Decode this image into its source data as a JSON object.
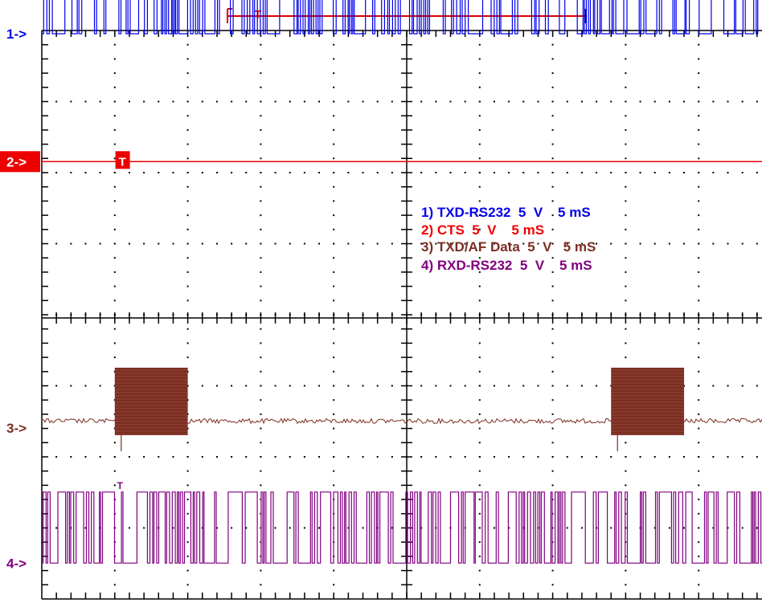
{
  "colors": {
    "background": "#ffffff",
    "grid": "#000000",
    "ch1": "#0000ee",
    "ch2": "#ee0000",
    "ch3": "#7b2e22",
    "ch4": "#800080",
    "trigger_bar": "#e00000"
  },
  "chart_data": {
    "type": "line",
    "title": "",
    "grid": true,
    "divisions": {
      "x": 10,
      "y": 8
    },
    "time_window": [
      0,
      50
    ],
    "legend_position": "center-right",
    "trigger_time": 10,
    "series": [
      {
        "name": "TXD-RS232",
        "label": "1->",
        "scale": "5 V",
        "time_scale": "5 mS",
        "legend_text": "1) TXD-RS232  5  V    5 mS",
        "kind": "serial-burst",
        "low_div": 4.0,
        "high_div": 5.0,
        "active_ms": [
          [
            0,
            50
          ]
        ]
      },
      {
        "name": "CTS",
        "label": "2->",
        "scale": "5  V",
        "time_scale": "5 mS",
        "legend_text": "2) CTS  5  V    5 mS",
        "kind": "flat",
        "level_div": 2.2,
        "active_ms": []
      },
      {
        "name": "TXD/AF Data",
        "label": "3->",
        "scale": "5  V",
        "time_scale": "5 mS",
        "legend_text": "3) TXD/AF Data  5  V   5 mS",
        "kind": "burst-block",
        "level_div": -1.45,
        "high_div": -0.7,
        "low_div": -1.65,
        "active_ms": [
          [
            5.0,
            10.0
          ],
          [
            39.0,
            44.0
          ]
        ]
      },
      {
        "name": "RXD-RS232",
        "label": "4->",
        "scale": "5  V",
        "time_scale": "5 mS",
        "legend_text": "4) RXD-RS232  5  V    5 mS",
        "kind": "serial-burst",
        "low_div": -3.45,
        "high_div": -2.45,
        "active_ms": [
          [
            0,
            50
          ]
        ]
      }
    ],
    "markers": {
      "trigger_label": "T",
      "ch2_marker": "T",
      "ch4_marker": "T"
    }
  }
}
